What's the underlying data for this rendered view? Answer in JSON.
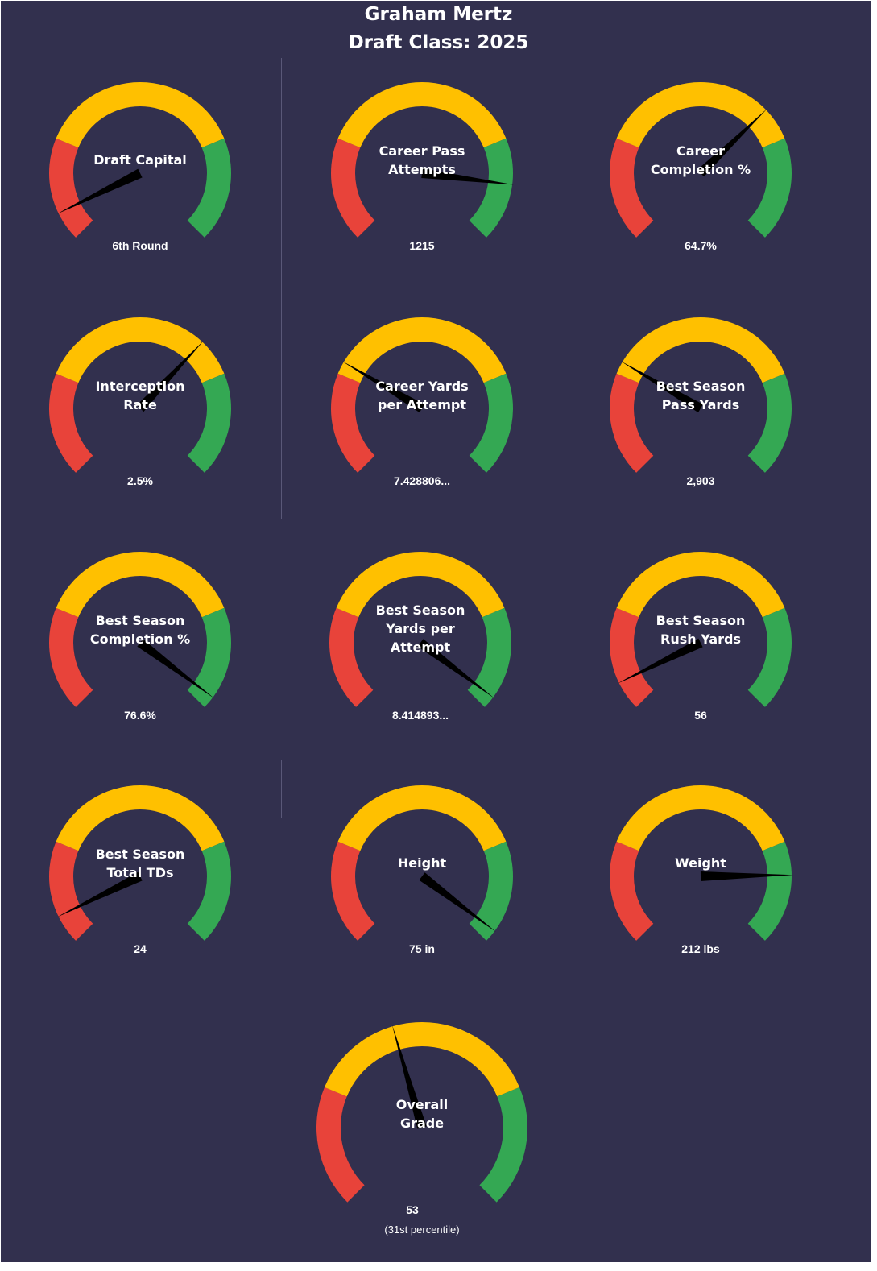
{
  "title": {
    "line1": "Graham Mertz",
    "line2": "Draft Class: 2025"
  },
  "colors": {
    "background": "#32304e",
    "red": "#e8433a",
    "yellow": "#ffc000",
    "green": "#34a853",
    "needle": "#000000",
    "text": "#ffffff"
  },
  "chart_data": [
    {
      "type": "gauge",
      "label": "Draft Capital",
      "value_text": "6th Round",
      "needle_fraction": 0.07
    },
    {
      "type": "gauge",
      "label": "Career Pass\nAttempts",
      "value_text": "1215",
      "needle_fraction": 0.86
    },
    {
      "type": "gauge",
      "label": "Career\nCompletion %",
      "value_text": "64.7%",
      "needle_fraction": 0.67
    },
    {
      "type": "gauge",
      "label": "Interception\nRate",
      "value_text": "2.5%",
      "needle_fraction": 0.66
    },
    {
      "type": "gauge",
      "label": "Career Yards\nper Attempt",
      "value_text": "7.428806...",
      "needle_fraction": 0.28
    },
    {
      "type": "gauge",
      "label": "Best Season\nPass Yards",
      "value_text": "2,903",
      "needle_fraction": 0.28
    },
    {
      "type": "gauge",
      "label": "Best Season\nCompletion %",
      "value_text": "76.6%",
      "needle_fraction": 0.97
    },
    {
      "type": "gauge",
      "label": "Best Season\nYards per\nAttempt",
      "value_text": "8.414893...",
      "needle_fraction": 0.97
    },
    {
      "type": "gauge",
      "label": "Best Season\nRush Yards",
      "value_text": "56",
      "needle_fraction": 0.07
    },
    {
      "type": "gauge",
      "label": "Best Season\nTotal TDs",
      "value_text": "24",
      "needle_fraction": 0.07
    },
    {
      "type": "gauge",
      "label": "Height",
      "value_text": "75 in",
      "needle_fraction": 0.97
    },
    {
      "type": "gauge",
      "label": "Weight",
      "value_text": "212 lbs",
      "needle_fraction": 0.83
    },
    {
      "type": "gauge",
      "label": "Overall\nGrade",
      "value_text": "53",
      "sub_text": "(31st percentile)",
      "needle_fraction": 0.44
    }
  ]
}
